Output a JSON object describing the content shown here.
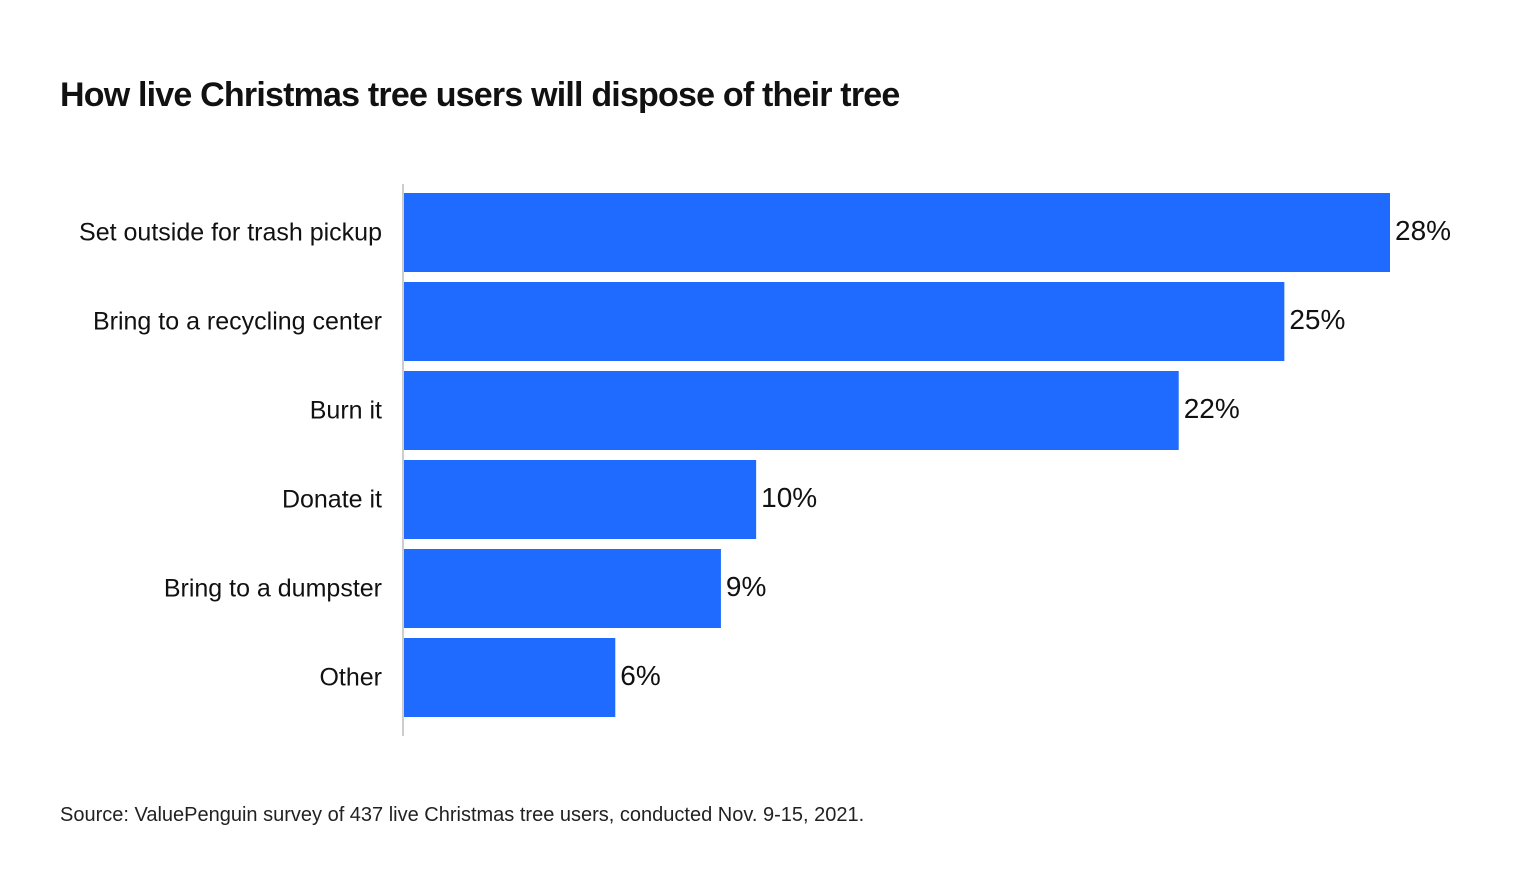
{
  "chart_data": {
    "type": "bar",
    "orientation": "horizontal",
    "title": "How live Christmas tree users will dispose of their tree",
    "categories": [
      "Set outside for trash pickup",
      "Bring to a recycling center",
      "Burn it",
      "Donate it",
      "Bring to a dumpster",
      "Other"
    ],
    "values": [
      28,
      25,
      22,
      10,
      9,
      6
    ],
    "value_labels": [
      "28%",
      "25%",
      "22%",
      "10%",
      "9%",
      "6%"
    ],
    "unit": "%",
    "xlim": [
      0,
      28
    ],
    "grid": false,
    "legend": "none",
    "bar_color": "#1f6bff",
    "axis_color": "#cccccc"
  },
  "source": "Source: ValuePenguin survey of 437 live Christmas tree users, conducted Nov. 9-15, 2021."
}
